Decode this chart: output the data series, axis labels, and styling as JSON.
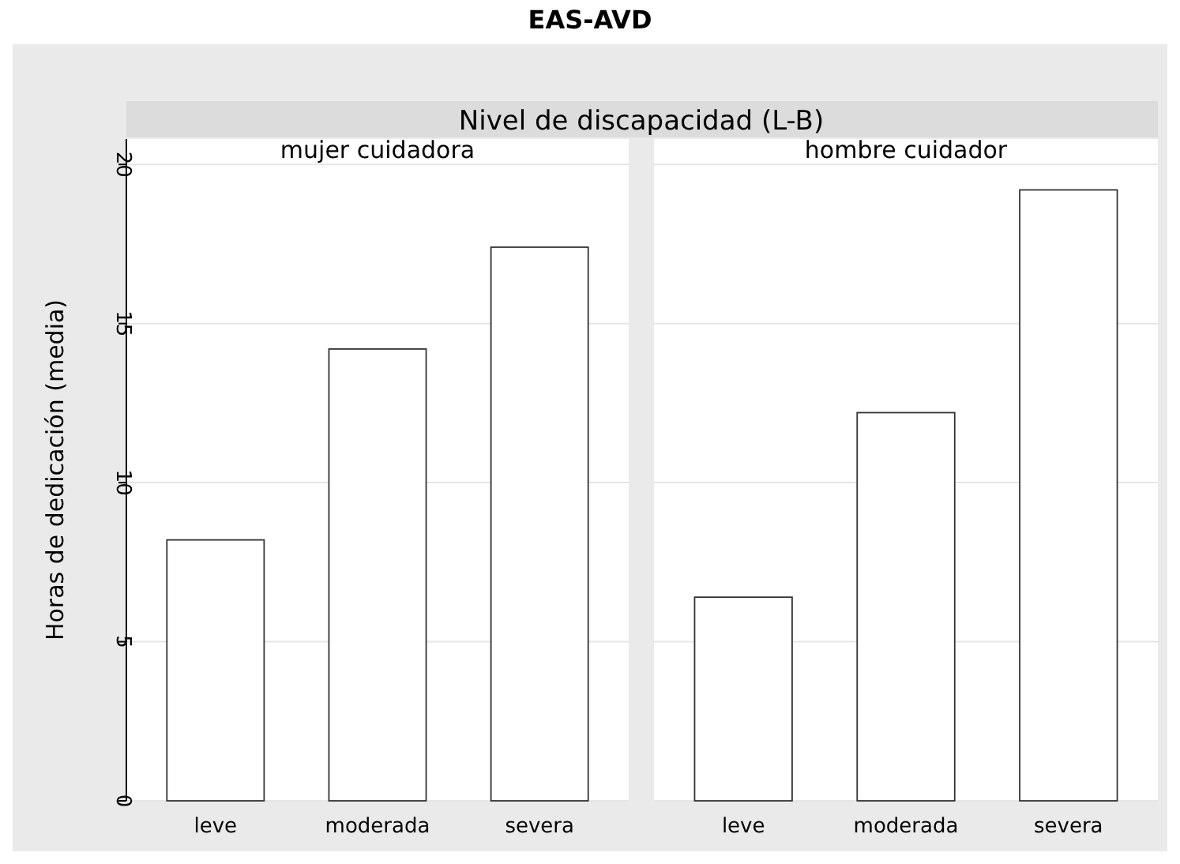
{
  "chart_data": [
    {
      "type": "bar",
      "title": "mujer cuidadora",
      "annotations": [
        "EAS-AVD",
        "Nivel de discapacidad (L-B)"
      ],
      "ylabel": "Horas de dedicación (media)",
      "categories": [
        "leve",
        "moderada",
        "severa"
      ],
      "series": [
        {
          "color": "#ffffff",
          "values": [
            8.2,
            14.2,
            17.4
          ]
        }
      ],
      "ylim": [
        0,
        20.8
      ],
      "yticks": [
        0,
        5,
        10,
        15,
        20
      ],
      "grid": "y"
    },
    {
      "type": "bar",
      "title": "hombre cuidador",
      "categories": [
        "leve",
        "moderada",
        "severa"
      ],
      "series": [
        {
          "color": "#ffffff",
          "values": [
            6.4,
            12.2,
            19.2
          ]
        }
      ],
      "ylim": [
        0,
        20.8
      ],
      "yticks": [
        0,
        5,
        10,
        15,
        20
      ],
      "grid": "y",
      "tick_labels": "x"
    }
  ]
}
